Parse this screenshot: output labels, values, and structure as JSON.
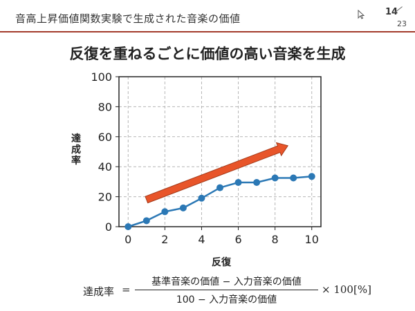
{
  "header": {
    "title": "音高上昇価値関数実験で生成された音楽の価値",
    "page_current": "14",
    "page_total": "23"
  },
  "slide": {
    "title": "反復を重ねるごとに価値の高い音楽を生成"
  },
  "chart_data": {
    "type": "line",
    "xlabel": "反復",
    "ylabel": "達成率",
    "x": [
      0,
      1,
      2,
      3,
      4,
      5,
      6,
      7,
      8,
      9,
      10
    ],
    "series": [
      {
        "values": [
          0,
          4,
          10,
          12.5,
          19,
          26,
          29.5,
          29.5,
          32.5,
          32.5,
          33.5
        ],
        "color": "#2b78b5"
      }
    ],
    "xlim": [
      -0.5,
      10.5
    ],
    "ylim": [
      0,
      100
    ],
    "xticks": [
      "0",
      "2",
      "4",
      "6",
      "8",
      "10"
    ],
    "yticks": [
      "0",
      "20",
      "40",
      "60",
      "80",
      "100"
    ],
    "grid": true,
    "annotation": {
      "type": "arrow",
      "color": "#e8552a",
      "from": [
        1,
        18
      ],
      "to": [
        8.7,
        54
      ]
    }
  },
  "formula": {
    "lhs": "達成率",
    "eq": "=",
    "numerator": "基準音楽の価値 − 入力音楽の価値",
    "denominator": "100 − 入力音楽の価値",
    "multiplier": "× 100[%]"
  }
}
